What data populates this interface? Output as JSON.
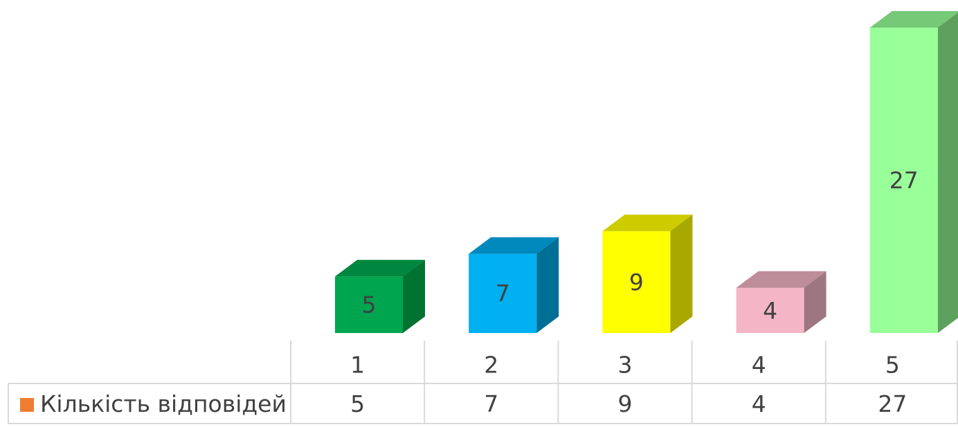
{
  "chart_data": {
    "type": "bar",
    "style": "3d-column-with-data-table",
    "categories": [
      "1",
      "2",
      "3",
      "4",
      "5"
    ],
    "series": [
      {
        "name": "Кількість відповідей",
        "values": [
          5,
          7,
          9,
          4,
          27
        ],
        "legend_color": "#ed7d31"
      }
    ],
    "bar_colors": [
      {
        "front": "#00a550",
        "side": "#007232",
        "top": "#00873f"
      },
      {
        "front": "#00b0f0",
        "side": "#006f96",
        "top": "#0089bc"
      },
      {
        "front": "#ffff00",
        "side": "#a8a800",
        "top": "#cccc00"
      },
      {
        "front": "#f4b6c6",
        "side": "#9e7681",
        "top": "#bd8e9a"
      },
      {
        "front": "#99ff99",
        "side": "#5ea05e",
        "top": "#76c976"
      }
    ],
    "data_labels": true,
    "ylim": [
      0,
      27
    ],
    "grid": false,
    "legend_position": "in-data-table"
  }
}
